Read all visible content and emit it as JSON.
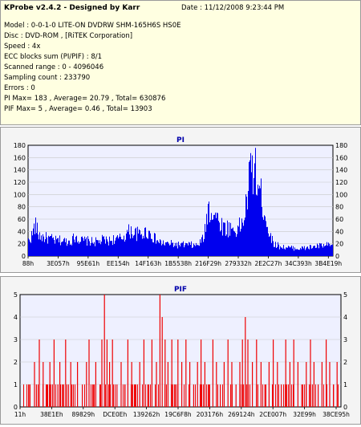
{
  "header": {
    "title": "KProbe v2.4.2 - Designed by Karr",
    "date": "Date : 11/12/2008 9:23:44 PM",
    "lines": [
      "Model : 0-0-1-0 LITE-ON DVDRW SHM-165H6S HS0E",
      "Disc : DVD-ROM ,  [RiTEK Corporation]",
      "Speed : 4x",
      "ECC blocks sum (PI/PIF) : 8/1",
      "Scanned range : 0 - 4096046",
      "Sampling count : 233790",
      "Errors : 0",
      "PI Max= 183 , Average= 20.79 , Total= 630876",
      "PIF Max= 5 , Average= 0.46 , Total= 13903"
    ]
  },
  "colors": {
    "bars_pi": "#0000ee",
    "bars_pif": "#ee0000",
    "plot_bg": "#eef0ff",
    "title": "#0000aa"
  },
  "chart_data": [
    {
      "type": "bar",
      "title": "PI",
      "ylim": [
        0,
        180
      ],
      "yticks": [
        0,
        20,
        40,
        60,
        80,
        100,
        120,
        140,
        160,
        180
      ],
      "xticks": [
        "88h",
        "3E057h",
        "95E61h",
        "EE154h",
        "14F163h",
        "1B5538h",
        "216F29h",
        "279332h",
        "2E2C27h",
        "34C393h",
        "3B4E19h"
      ],
      "profile": [
        [
          0,
          30
        ],
        [
          1,
          40
        ],
        [
          2,
          62
        ],
        [
          3,
          42
        ],
        [
          4,
          38
        ],
        [
          5,
          36
        ],
        [
          6,
          34
        ],
        [
          7,
          33
        ],
        [
          8,
          30
        ],
        [
          9,
          31
        ],
        [
          10,
          30
        ],
        [
          11,
          29
        ],
        [
          12,
          29
        ],
        [
          13,
          32
        ],
        [
          14,
          40
        ],
        [
          15,
          32
        ],
        [
          16,
          30
        ],
        [
          17,
          30
        ],
        [
          18,
          29
        ],
        [
          19,
          28
        ],
        [
          20,
          28
        ],
        [
          21,
          28
        ],
        [
          22,
          32
        ],
        [
          23,
          30
        ],
        [
          24,
          30
        ],
        [
          25,
          33
        ],
        [
          26,
          32
        ],
        [
          27,
          34
        ],
        [
          28,
          38
        ],
        [
          29,
          44
        ],
        [
          30,
          50
        ],
        [
          31,
          46
        ],
        [
          32,
          44
        ],
        [
          33,
          42
        ],
        [
          34,
          45
        ],
        [
          35,
          48
        ],
        [
          36,
          44
        ],
        [
          37,
          36
        ],
        [
          38,
          30
        ],
        [
          39,
          26
        ],
        [
          40,
          25
        ],
        [
          41,
          24
        ],
        [
          42,
          24
        ],
        [
          43,
          23
        ],
        [
          44,
          22
        ],
        [
          45,
          22
        ],
        [
          46,
          22
        ],
        [
          47,
          22
        ],
        [
          48,
          22
        ],
        [
          49,
          20
        ],
        [
          50,
          22
        ],
        [
          51,
          28
        ],
        [
          52,
          42
        ],
        [
          53,
          95
        ],
        [
          54,
          90
        ],
        [
          55,
          85
        ],
        [
          56,
          70
        ],
        [
          57,
          62
        ],
        [
          58,
          55
        ],
        [
          59,
          55
        ],
        [
          60,
          55
        ],
        [
          61,
          50
        ],
        [
          62,
          55
        ],
        [
          63,
          62
        ],
        [
          64,
          85
        ],
        [
          65,
          140
        ],
        [
          66,
          180
        ],
        [
          67,
          162
        ],
        [
          68,
          132
        ],
        [
          69,
          110
        ],
        [
          70,
          80
        ],
        [
          71,
          48
        ],
        [
          72,
          30
        ],
        [
          73,
          22
        ],
        [
          74,
          20
        ],
        [
          75,
          18
        ],
        [
          76,
          17
        ],
        [
          77,
          16
        ],
        [
          78,
          16
        ],
        [
          79,
          15
        ],
        [
          80,
          15
        ],
        [
          81,
          15
        ],
        [
          82,
          16
        ],
        [
          83,
          17
        ],
        [
          84,
          18
        ],
        [
          85,
          19
        ],
        [
          86,
          20
        ],
        [
          87,
          20
        ],
        [
          88,
          21
        ],
        [
          89,
          20
        ],
        [
          90,
          22
        ]
      ]
    },
    {
      "type": "bar",
      "title": "PIF",
      "ylim": [
        0,
        5
      ],
      "yticks": [
        0,
        1,
        2,
        3,
        4,
        5
      ],
      "xticks": [
        "11h",
        "38E1Eh",
        "89829h",
        "DCE0Eh",
        "139262h",
        "19C6F8h",
        "203176h",
        "269124h",
        "2CE007h",
        "32E99h",
        "38CE95h"
      ],
      "spikes": [
        [
          3,
          1
        ],
        [
          4.5,
          2
        ],
        [
          5.1,
          1
        ],
        [
          6,
          3
        ],
        [
          7.2,
          2
        ],
        [
          8.4,
          1
        ],
        [
          9.3,
          2
        ],
        [
          10.6,
          3
        ],
        [
          11.8,
          1
        ],
        [
          12.4,
          2
        ],
        [
          13.5,
          1
        ],
        [
          14.2,
          3
        ],
        [
          15.8,
          2
        ],
        [
          16.6,
          1
        ],
        [
          17.9,
          2
        ],
        [
          19.4,
          1
        ],
        [
          20.7,
          2
        ],
        [
          21.5,
          3
        ],
        [
          22.8,
          1
        ],
        [
          23.6,
          2
        ],
        [
          24.9,
          1
        ],
        [
          25.5,
          3
        ],
        [
          26.3,
          5
        ],
        [
          27.1,
          3
        ],
        [
          27.9,
          2
        ],
        [
          28.8,
          3
        ],
        [
          30.2,
          1
        ],
        [
          31.5,
          2
        ],
        [
          32.7,
          1
        ],
        [
          33.6,
          3
        ],
        [
          34.8,
          2
        ],
        [
          35.9,
          1
        ],
        [
          37.3,
          2
        ],
        [
          38.6,
          3
        ],
        [
          39.8,
          1
        ],
        [
          41.1,
          3
        ],
        [
          42.5,
          2
        ],
        [
          43.6,
          5
        ],
        [
          44.3,
          4
        ],
        [
          45.2,
          3
        ],
        [
          46.1,
          2
        ],
        [
          47.3,
          3
        ],
        [
          48.5,
          1
        ],
        [
          49.2,
          3
        ],
        [
          50.4,
          2
        ],
        [
          51.7,
          3
        ],
        [
          52.9,
          2
        ],
        [
          54.1,
          1
        ],
        [
          55.3,
          2
        ],
        [
          56.4,
          3
        ],
        [
          57.6,
          2
        ],
        [
          58.8,
          1
        ],
        [
          60.1,
          3
        ],
        [
          61.2,
          2
        ],
        [
          62.4,
          1
        ],
        [
          63.6,
          2
        ],
        [
          64.8,
          3
        ],
        [
          66,
          2
        ],
        [
          67.3,
          1
        ],
        [
          68.5,
          2
        ],
        [
          69.3,
          3
        ],
        [
          70.2,
          4
        ],
        [
          71,
          3
        ],
        [
          72.4,
          2
        ],
        [
          73.7,
          3
        ],
        [
          75.1,
          2
        ],
        [
          76.3,
          1
        ],
        [
          77.6,
          2
        ],
        [
          78.9,
          3
        ],
        [
          80.2,
          2
        ],
        [
          81.4,
          1
        ],
        [
          82.8,
          3
        ],
        [
          84.1,
          2
        ],
        [
          85.3,
          3
        ],
        [
          86.6,
          2
        ],
        [
          87.8,
          1
        ],
        [
          89.2,
          2
        ],
        [
          90.5,
          3
        ],
        [
          91.6,
          2
        ],
        [
          92.9,
          1
        ],
        [
          94.1,
          2
        ],
        [
          95.4,
          3
        ],
        [
          96.5,
          2
        ],
        [
          97.7,
          1
        ],
        [
          98.8,
          2
        ]
      ]
    }
  ]
}
